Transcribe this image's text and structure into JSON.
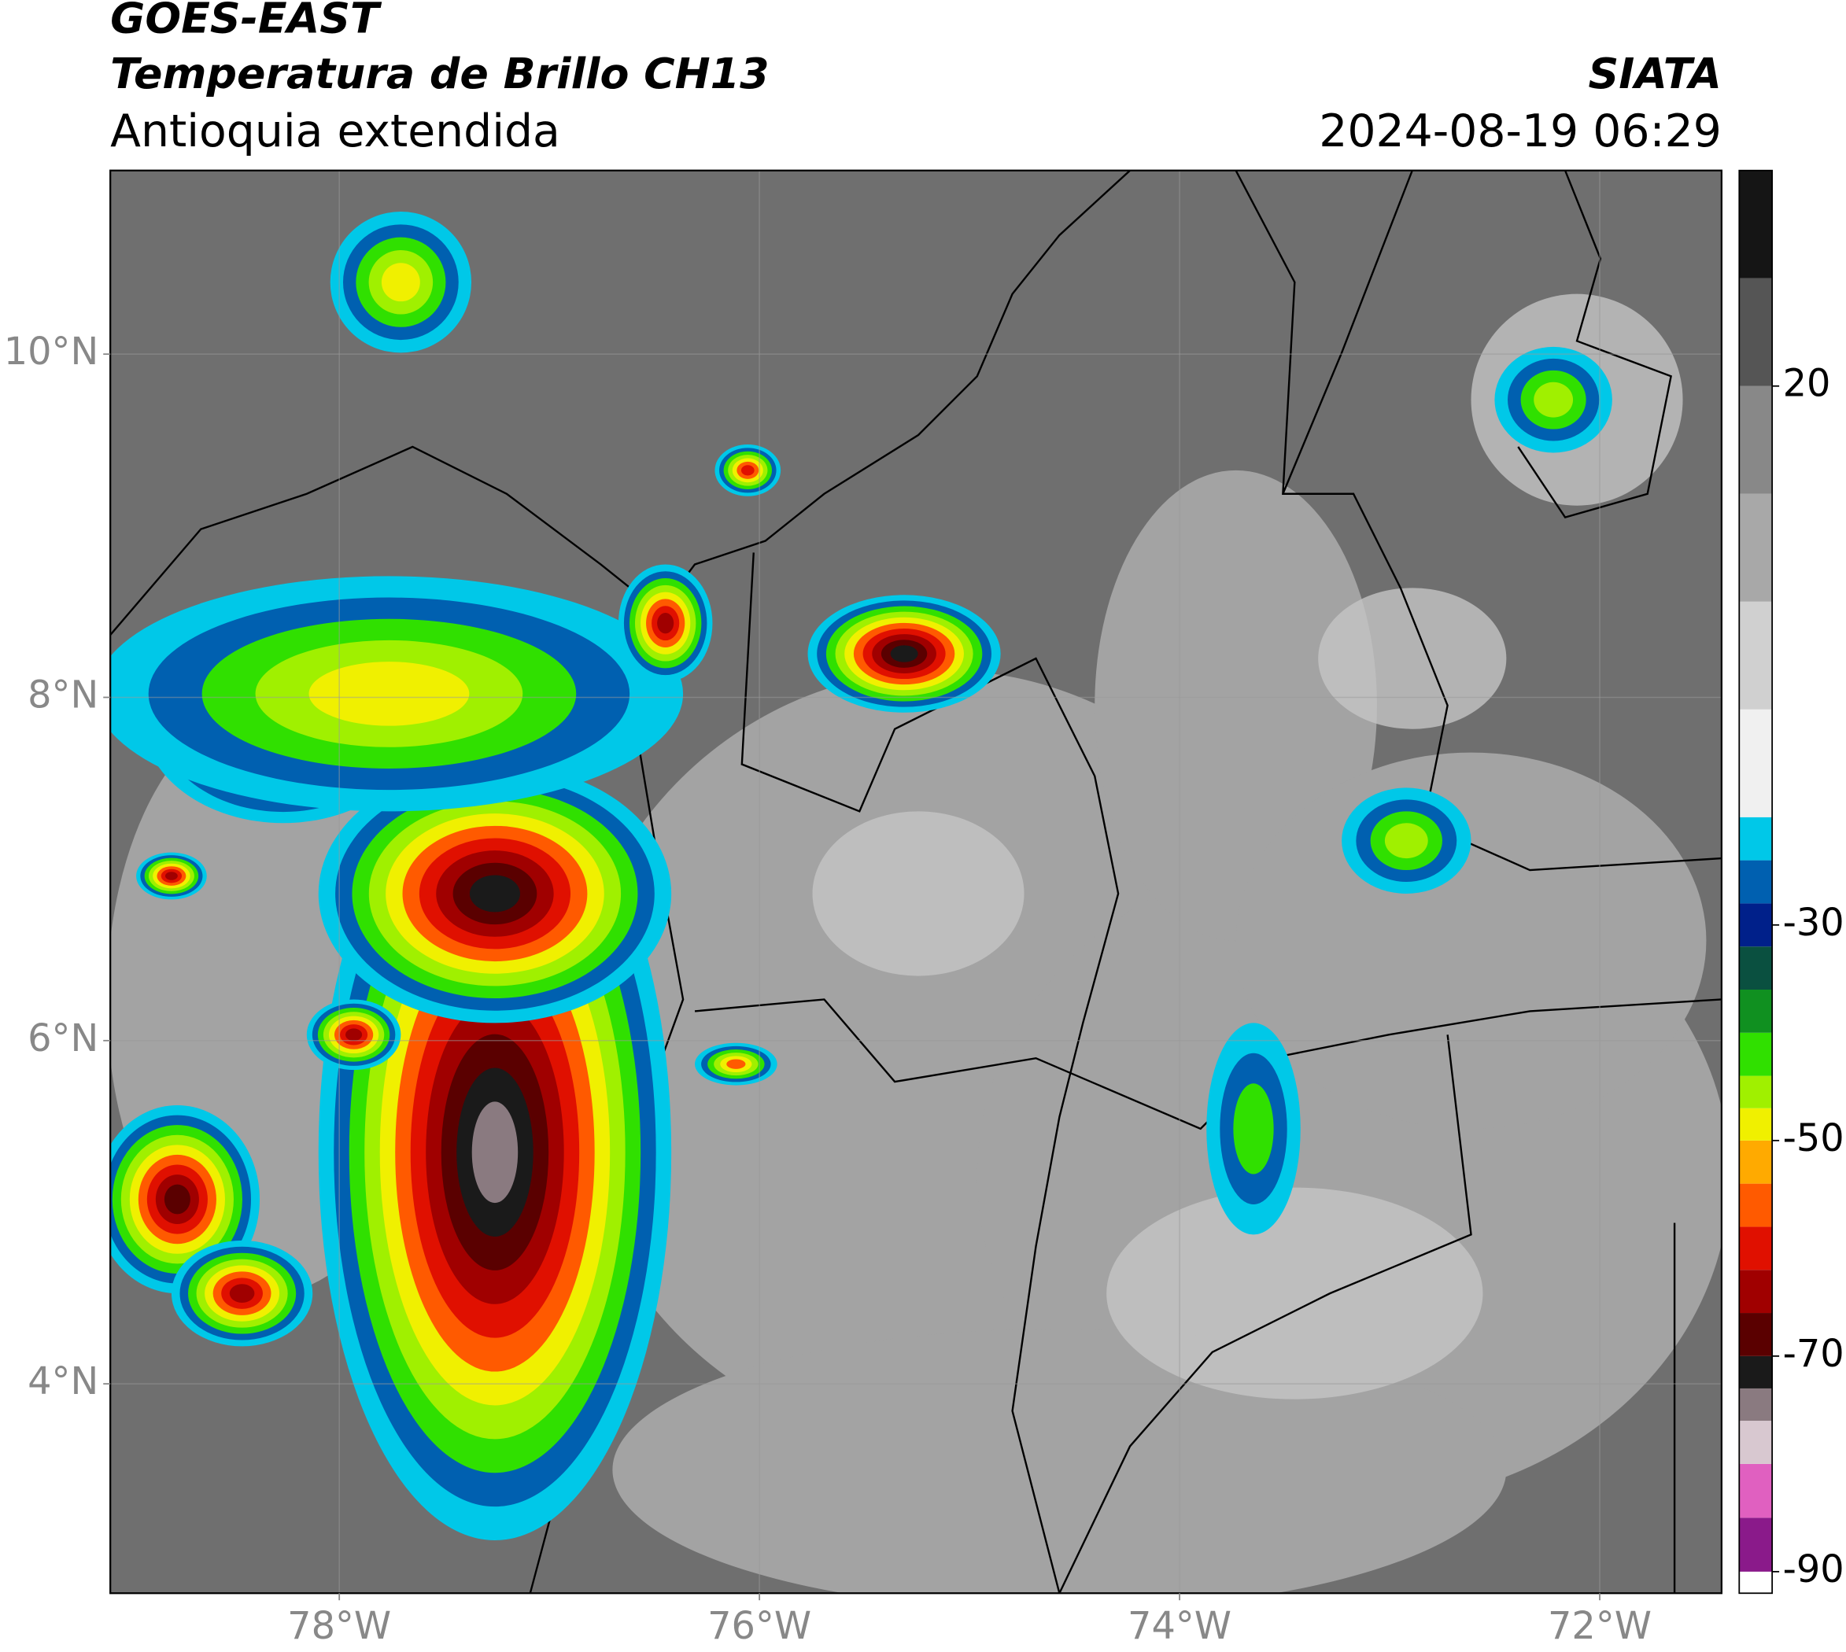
{
  "header": {
    "title": "GOES-EAST",
    "subtitle": "Temperatura de Brillo CH13",
    "region": "Antioquia extendida",
    "agency": "SIATA",
    "datetime": "2024-08-19 06:29"
  },
  "map": {
    "xlim": [
      -79.09,
      -71.42
    ],
    "ylim": [
      2.78,
      11.07
    ],
    "grid": true,
    "xticks": [
      {
        "value": -78,
        "label": "78°W"
      },
      {
        "value": -76,
        "label": "76°W"
      },
      {
        "value": -74,
        "label": "74°W"
      },
      {
        "value": -72,
        "label": "72°W"
      }
    ],
    "yticks": [
      {
        "value": 4,
        "label": "4°N"
      },
      {
        "value": 6,
        "label": "6°N"
      },
      {
        "value": 8,
        "label": "8°N"
      },
      {
        "value": 10,
        "label": "10°N"
      }
    ]
  },
  "colorbar": {
    "lim": [
      -92,
      40
    ],
    "ticks": [
      -90,
      -70,
      -50,
      -30,
      20
    ],
    "levels": [
      -92,
      -90,
      -85,
      -80,
      -76,
      -73,
      -70,
      -66,
      -62,
      -58,
      -54,
      -50,
      -47,
      -44,
      -40,
      -36,
      -32,
      -28,
      -24,
      -20,
      -10,
      0,
      10,
      20,
      30,
      40
    ],
    "colors": [
      "#ffffff",
      "#8a1a8a",
      "#e060c0",
      "#d8c8d0",
      "#8a7a80",
      "#1a1a1a",
      "#5a0000",
      "#a00000",
      "#e01000",
      "#ff5a00",
      "#ffaa00",
      "#f0f000",
      "#a0f000",
      "#30e000",
      "#109020",
      "#0a5040",
      "#00208a",
      "#0060b0",
      "#00c8e8",
      "#f0f0f0",
      "#d0d0d0",
      "#a8a8a8",
      "#888888",
      "#555555",
      "#151515"
    ]
  }
}
